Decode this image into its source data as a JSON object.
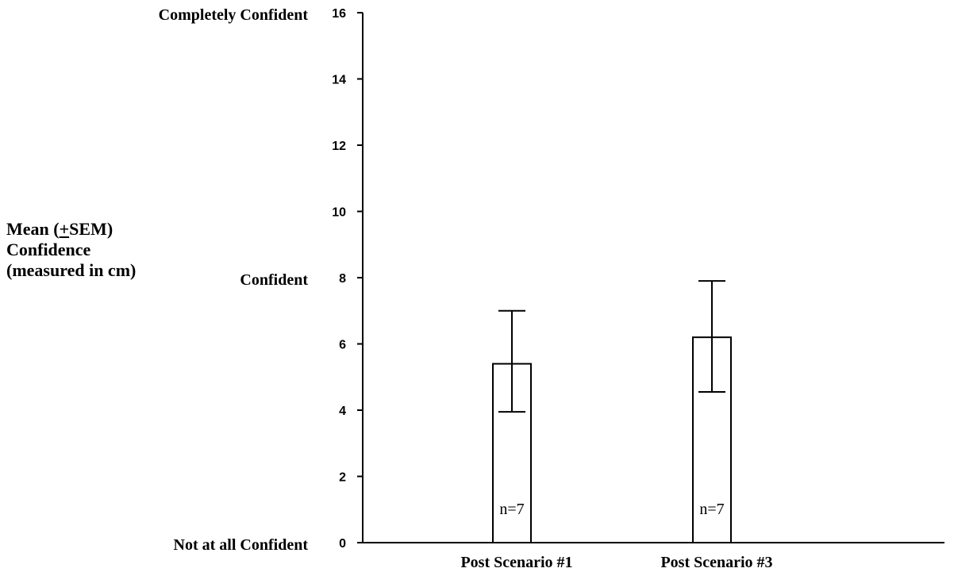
{
  "chart_data": {
    "type": "bar",
    "categories": [
      "Post Scenario #1",
      "Post Scenario #3"
    ],
    "values": [
      5.4,
      6.2
    ],
    "error_upper": [
      7.0,
      7.9
    ],
    "error_lower": [
      3.95,
      4.55
    ],
    "bar_labels": [
      "n=7",
      "n=7"
    ],
    "ylim": [
      0,
      16
    ],
    "yticks": [
      0,
      2,
      4,
      6,
      8,
      10,
      12,
      14,
      16
    ],
    "ylabel": {
      "prefix": "Mean (",
      "pm": "+",
      "suffix": "SEM)",
      "line2": "Confidence",
      "line3": "(measured in cm)"
    },
    "anchor_labels": [
      {
        "value": 16,
        "text": "Completely Confident"
      },
      {
        "value": 8,
        "text": "Confident"
      },
      {
        "value": 0,
        "text": "Not at all Confident"
      }
    ],
    "bar_fill": "#ffffff",
    "bar_stroke": "#000000",
    "grid": false
  }
}
